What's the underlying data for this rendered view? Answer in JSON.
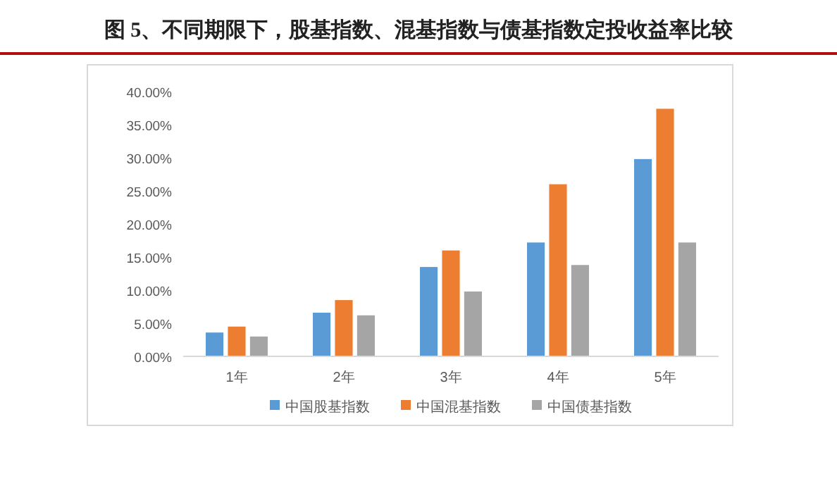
{
  "chart_data": {
    "type": "bar",
    "title": "图 5、不同期限下，股基指数、混基指数与债基指数定投收益率比较",
    "categories": [
      "1年",
      "2年",
      "3年",
      "4年",
      "5年"
    ],
    "series": [
      {
        "name": "中国股基指数",
        "color": "#5b9bd5",
        "values": [
          3.6,
          6.6,
          13.5,
          17.2,
          29.8
        ]
      },
      {
        "name": "中国混基指数",
        "color": "#ed7d31",
        "values": [
          4.5,
          8.5,
          16.0,
          26.0,
          37.4
        ]
      },
      {
        "name": "中国债基指数",
        "color": "#a5a5a5",
        "values": [
          3.0,
          6.2,
          9.8,
          13.8,
          17.2
        ]
      }
    ],
    "ylim": [
      0,
      40
    ],
    "yticks": [
      {
        "value": 0,
        "label": "0.00%"
      },
      {
        "value": 5,
        "label": "5.00%"
      },
      {
        "value": 10,
        "label": "10.00%"
      },
      {
        "value": 15,
        "label": "15.00%"
      },
      {
        "value": 20,
        "label": "20.00%"
      },
      {
        "value": 25,
        "label": "25.00%"
      },
      {
        "value": 30,
        "label": "30.00%"
      },
      {
        "value": 35,
        "label": "35.00%"
      },
      {
        "value": 40,
        "label": "40.00%"
      }
    ],
    "legend": "bottom"
  }
}
